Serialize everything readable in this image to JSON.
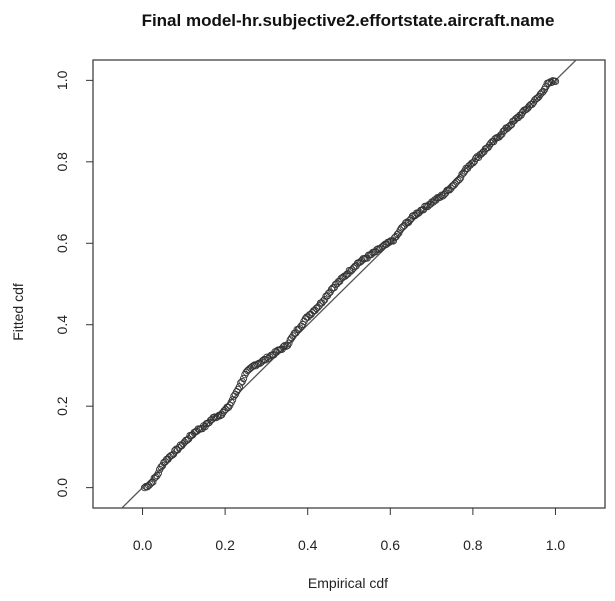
{
  "chart_data": {
    "type": "scatter",
    "title": "Final model-hr.subjective2.effortstate.aircraft.name",
    "xlabel": "Empirical cdf",
    "ylabel": "Fitted cdf",
    "xlim": [
      -0.12,
      1.12
    ],
    "ylim": [
      -0.05,
      1.05
    ],
    "xticks": [
      "0.0",
      "0.2",
      "0.4",
      "0.6",
      "0.8",
      "1.0"
    ],
    "yticks": [
      "0.0",
      "0.2",
      "0.4",
      "0.6",
      "0.8",
      "1.0"
    ],
    "reference_line": {
      "slope": 1,
      "intercept": 0,
      "color": "#555555"
    },
    "marker": {
      "shape": "open-circle",
      "color": "#333333"
    },
    "grid": false,
    "points_curve": [
      [
        0.005,
        0.0
      ],
      [
        0.02,
        0.01
      ],
      [
        0.035,
        0.03
      ],
      [
        0.05,
        0.06
      ],
      [
        0.07,
        0.08
      ],
      [
        0.09,
        0.1
      ],
      [
        0.11,
        0.12
      ],
      [
        0.13,
        0.14
      ],
      [
        0.15,
        0.15
      ],
      [
        0.17,
        0.17
      ],
      [
        0.19,
        0.18
      ],
      [
        0.21,
        0.2
      ],
      [
        0.23,
        0.24
      ],
      [
        0.25,
        0.28
      ],
      [
        0.27,
        0.3
      ],
      [
        0.29,
        0.31
      ],
      [
        0.32,
        0.33
      ],
      [
        0.35,
        0.35
      ],
      [
        0.37,
        0.38
      ],
      [
        0.4,
        0.42
      ],
      [
        0.43,
        0.45
      ],
      [
        0.46,
        0.49
      ],
      [
        0.49,
        0.52
      ],
      [
        0.52,
        0.55
      ],
      [
        0.55,
        0.57
      ],
      [
        0.58,
        0.59
      ],
      [
        0.61,
        0.61
      ],
      [
        0.63,
        0.64
      ],
      [
        0.66,
        0.67
      ],
      [
        0.7,
        0.7
      ],
      [
        0.73,
        0.72
      ],
      [
        0.76,
        0.75
      ],
      [
        0.79,
        0.79
      ],
      [
        0.82,
        0.82
      ],
      [
        0.85,
        0.85
      ],
      [
        0.88,
        0.88
      ],
      [
        0.91,
        0.91
      ],
      [
        0.94,
        0.94
      ],
      [
        0.96,
        0.96
      ],
      [
        0.98,
        0.99
      ],
      [
        1.0,
        1.0
      ]
    ],
    "n_points": 300
  }
}
